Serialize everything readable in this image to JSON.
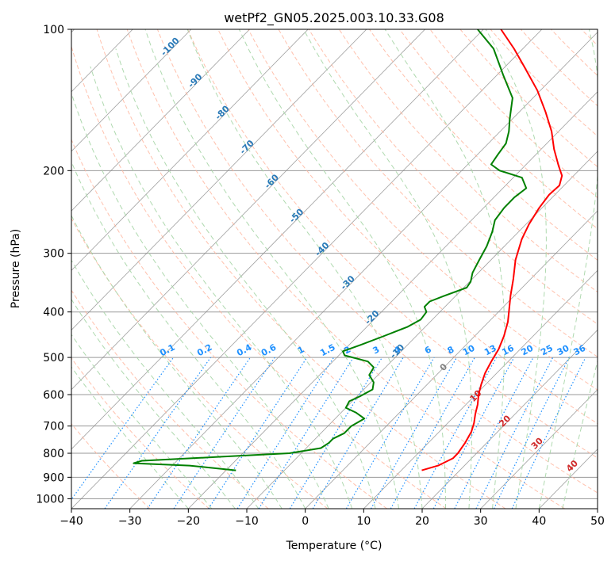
{
  "chart_data": {
    "type": "line",
    "title": "wetPf2_GN05.2025.003.10.33.G08",
    "xlabel": "Temperature (°C)",
    "ylabel": "Pressure (hPa)",
    "xlim": [
      -40,
      50
    ],
    "ylim": [
      1050,
      100
    ],
    "y_scale": "log",
    "skew_t": true,
    "grid": true,
    "x_ticks": [
      "−40",
      "−30",
      "−20",
      "−10",
      "0",
      "10",
      "20",
      "30",
      "40",
      "50"
    ],
    "y_ticks": [
      "100",
      "200",
      "300",
      "400",
      "500",
      "600",
      "700",
      "800",
      "900",
      "1000"
    ],
    "series": [
      {
        "kind": "temperature",
        "color": "#ff0000",
        "points": [
          [
            870,
            13.5
          ],
          [
            850,
            15.5
          ],
          [
            820,
            16.8
          ],
          [
            800,
            16.8
          ],
          [
            760,
            16.3
          ],
          [
            720,
            15.5
          ],
          [
            690,
            14.5
          ],
          [
            660,
            13.2
          ],
          [
            630,
            12.0
          ],
          [
            600,
            10.5
          ],
          [
            570,
            9.2
          ],
          [
            540,
            8.0
          ],
          [
            510,
            7.1
          ],
          [
            480,
            6.3
          ],
          [
            450,
            5.0
          ],
          [
            420,
            3.3
          ],
          [
            400,
            1.8
          ],
          [
            370,
            -0.6
          ],
          [
            340,
            -3.0
          ],
          [
            310,
            -5.8
          ],
          [
            280,
            -8.2
          ],
          [
            260,
            -9.5
          ],
          [
            240,
            -10.5
          ],
          [
            225,
            -11.0
          ],
          [
            215,
            -10.8
          ],
          [
            205,
            -12.0
          ],
          [
            195,
            -14.3
          ],
          [
            180,
            -17.8
          ],
          [
            165,
            -21.2
          ],
          [
            150,
            -25.5
          ],
          [
            135,
            -30.5
          ],
          [
            120,
            -36.8
          ],
          [
            110,
            -41.5
          ],
          [
            100,
            -47.0
          ]
        ]
      },
      {
        "kind": "dewpoint",
        "color": "#008000",
        "points": [
          [
            870,
            -18.3
          ],
          [
            850,
            -27.0
          ],
          [
            840,
            -37.0
          ],
          [
            830,
            -36.0
          ],
          [
            815,
            -24.0
          ],
          [
            800,
            -12.0
          ],
          [
            780,
            -7.5
          ],
          [
            760,
            -7.0
          ],
          [
            745,
            -7.0
          ],
          [
            725,
            -6.0
          ],
          [
            700,
            -6.0
          ],
          [
            675,
            -5.0
          ],
          [
            655,
            -7.5
          ],
          [
            640,
            -10.0
          ],
          [
            620,
            -10.5
          ],
          [
            605,
            -9.5
          ],
          [
            585,
            -8.5
          ],
          [
            565,
            -9.5
          ],
          [
            545,
            -11.5
          ],
          [
            525,
            -12.0
          ],
          [
            510,
            -14.0
          ],
          [
            495,
            -19.0
          ],
          [
            485,
            -20.0
          ],
          [
            470,
            -18.0
          ],
          [
            450,
            -15.5
          ],
          [
            430,
            -13.0
          ],
          [
            415,
            -12.0
          ],
          [
            400,
            -12.3
          ],
          [
            390,
            -13.5
          ],
          [
            380,
            -13.5
          ],
          [
            370,
            -12.0
          ],
          [
            355,
            -9.5
          ],
          [
            345,
            -9.8
          ],
          [
            330,
            -11.0
          ],
          [
            310,
            -12.0
          ],
          [
            290,
            -13.0
          ],
          [
            270,
            -14.5
          ],
          [
            255,
            -16.0
          ],
          [
            240,
            -16.5
          ],
          [
            228,
            -16.5
          ],
          [
            218,
            -16.0
          ],
          [
            207,
            -18.5
          ],
          [
            200,
            -23.5
          ],
          [
            194,
            -26.0
          ],
          [
            185,
            -26.5
          ],
          [
            175,
            -27.0
          ],
          [
            165,
            -28.5
          ],
          [
            155,
            -30.5
          ],
          [
            140,
            -33.5
          ],
          [
            125,
            -39.0
          ],
          [
            110,
            -45.0
          ],
          [
            100,
            -51.0
          ]
        ]
      }
    ],
    "dry_adiabat_labels": [
      "-100",
      "-90",
      "-80",
      "-70",
      "-60",
      "-50",
      "-40",
      "-30",
      "-20",
      "-10"
    ],
    "mixing_ratio_labels": [
      "0.1",
      "0.2",
      "0.4",
      "0.6",
      "1",
      "1.5",
      "2",
      "3",
      "4",
      "6",
      "8",
      "10",
      "13",
      "16",
      "20",
      "25",
      "30",
      "36"
    ],
    "moist_adiabat_labels": [
      "0",
      "10",
      "20",
      "30",
      "40"
    ]
  },
  "colors": {
    "temperature": "#ff0000",
    "dewpoint": "#008000",
    "dry_adiabat": "#ffb299",
    "moist_adiabat": "#a6d5a6",
    "mixing_ratio": "#1e90ff",
    "isotherm": "#888888",
    "isobar": "#9a9a9a"
  }
}
